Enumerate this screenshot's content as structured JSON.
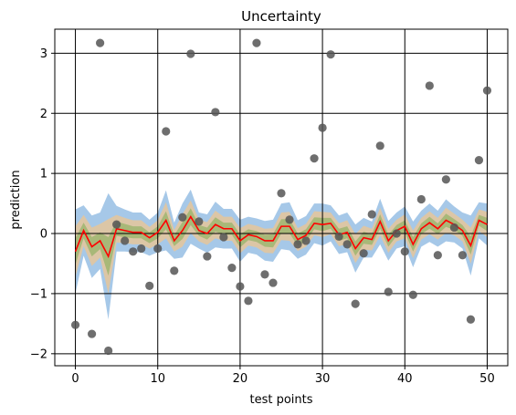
{
  "chart_data": {
    "type": "line",
    "title": "Uncertainty",
    "xlabel": "test points",
    "ylabel": "prediction",
    "xlim": [
      -2.5,
      52.5
    ],
    "ylim": [
      -2.2,
      3.4
    ],
    "xticks": [
      0,
      10,
      20,
      30,
      40,
      50
    ],
    "yticks": [
      -2,
      -1,
      0,
      1,
      2,
      3
    ],
    "ytick_labels": [
      "−2",
      "−1",
      "0",
      "1",
      "2",
      "3"
    ],
    "grid": true,
    "x": [
      0,
      1,
      2,
      3,
      4,
      5,
      6,
      7,
      8,
      9,
      10,
      11,
      12,
      13,
      14,
      15,
      16,
      17,
      18,
      19,
      20,
      21,
      22,
      23,
      24,
      25,
      26,
      27,
      28,
      29,
      30,
      31,
      32,
      33,
      34,
      35,
      36,
      37,
      38,
      39,
      40,
      41,
      42,
      43,
      44,
      45,
      46,
      47,
      48,
      49,
      50
    ],
    "series": [
      {
        "kind": "line",
        "color": "#ff0000",
        "values": [
          -0.3,
          0.05,
          -0.22,
          -0.12,
          -0.38,
          0.08,
          0.05,
          0.02,
          0.02,
          -0.07,
          0.02,
          0.22,
          -0.12,
          0.05,
          0.28,
          0.05,
          0.0,
          0.15,
          0.08,
          0.08,
          -0.12,
          -0.02,
          -0.05,
          -0.12,
          -0.12,
          0.12,
          0.12,
          -0.1,
          -0.03,
          0.17,
          0.15,
          0.17,
          -0.02,
          0.02,
          -0.25,
          -0.07,
          -0.1,
          0.2,
          -0.12,
          0.05,
          0.12,
          -0.18,
          0.08,
          0.18,
          0.08,
          0.22,
          0.15,
          0.05,
          -0.2,
          0.22,
          0.15
        ]
      },
      {
        "kind": "scatter",
        "color": "#555555",
        "points": [
          [
            0,
            -1.52
          ],
          [
            2,
            -1.67
          ],
          [
            3,
            3.17
          ],
          [
            4,
            -1.95
          ],
          [
            5,
            0.15
          ],
          [
            6,
            -0.12
          ],
          [
            7,
            -0.3
          ],
          [
            8,
            -0.25
          ],
          [
            9,
            -0.87
          ],
          [
            10,
            -0.25
          ],
          [
            11,
            1.7
          ],
          [
            12,
            -0.62
          ],
          [
            13,
            0.27
          ],
          [
            14,
            2.99
          ],
          [
            15,
            0.2
          ],
          [
            16,
            -0.38
          ],
          [
            17,
            2.02
          ],
          [
            18,
            -0.06
          ],
          [
            19,
            -0.57
          ],
          [
            20,
            -0.88
          ],
          [
            21,
            -1.12
          ],
          [
            22,
            3.17
          ],
          [
            23,
            -0.68
          ],
          [
            24,
            -0.82
          ],
          [
            25,
            0.67
          ],
          [
            26,
            0.23
          ],
          [
            27,
            -0.18
          ],
          [
            28,
            -0.12
          ],
          [
            29,
            1.25
          ],
          [
            30,
            1.76
          ],
          [
            31,
            2.98
          ],
          [
            32,
            -0.05
          ],
          [
            33,
            -0.18
          ],
          [
            34,
            -1.17
          ],
          [
            35,
            -0.33
          ],
          [
            36,
            0.32
          ],
          [
            37,
            1.46
          ],
          [
            38,
            -0.97
          ],
          [
            39,
            0.0
          ],
          [
            40,
            -0.3
          ],
          [
            41,
            -1.02
          ],
          [
            42,
            0.57
          ],
          [
            43,
            2.46
          ],
          [
            44,
            -0.36
          ],
          [
            45,
            0.9
          ],
          [
            46,
            0.1
          ],
          [
            47,
            -0.36
          ],
          [
            48,
            -1.43
          ],
          [
            49,
            1.22
          ],
          [
            50,
            2.38
          ]
        ]
      }
    ],
    "bands": [
      {
        "color": "#a6c8e8",
        "halfwidth": [
          0.7,
          0.42,
          0.52,
          0.47,
          1.05,
          0.38,
          0.35,
          0.33,
          0.33,
          0.3,
          0.33,
          0.5,
          0.3,
          0.45,
          0.45,
          0.3,
          0.32,
          0.38,
          0.33,
          0.33,
          0.35,
          0.3,
          0.3,
          0.33,
          0.35,
          0.38,
          0.4,
          0.32,
          0.32,
          0.33,
          0.35,
          0.3,
          0.32,
          0.33,
          0.4,
          0.33,
          0.3,
          0.38,
          0.33,
          0.3,
          0.33,
          0.38,
          0.3,
          0.32,
          0.3,
          0.35,
          0.3,
          0.3,
          0.5,
          0.3,
          0.35
        ]
      },
      {
        "color": "#dcc6a6",
        "halfwidth": [
          0.42,
          0.26,
          0.32,
          0.28,
          0.62,
          0.23,
          0.21,
          0.2,
          0.2,
          0.18,
          0.2,
          0.3,
          0.18,
          0.27,
          0.27,
          0.18,
          0.19,
          0.23,
          0.2,
          0.2,
          0.21,
          0.18,
          0.18,
          0.2,
          0.21,
          0.23,
          0.24,
          0.19,
          0.19,
          0.2,
          0.21,
          0.18,
          0.19,
          0.2,
          0.24,
          0.2,
          0.18,
          0.23,
          0.2,
          0.18,
          0.2,
          0.23,
          0.18,
          0.19,
          0.18,
          0.21,
          0.18,
          0.18,
          0.3,
          0.18,
          0.21
        ]
      },
      {
        "color": "#a8b878",
        "halfwidth": [
          0.22,
          0.13,
          0.16,
          0.14,
          0.32,
          0.12,
          0.11,
          0.1,
          0.1,
          0.09,
          0.1,
          0.15,
          0.09,
          0.14,
          0.14,
          0.09,
          0.1,
          0.12,
          0.1,
          0.1,
          0.11,
          0.09,
          0.09,
          0.1,
          0.11,
          0.12,
          0.12,
          0.1,
          0.1,
          0.1,
          0.11,
          0.09,
          0.1,
          0.1,
          0.12,
          0.1,
          0.09,
          0.12,
          0.1,
          0.09,
          0.1,
          0.12,
          0.09,
          0.1,
          0.09,
          0.11,
          0.09,
          0.09,
          0.15,
          0.09,
          0.11
        ]
      }
    ]
  }
}
